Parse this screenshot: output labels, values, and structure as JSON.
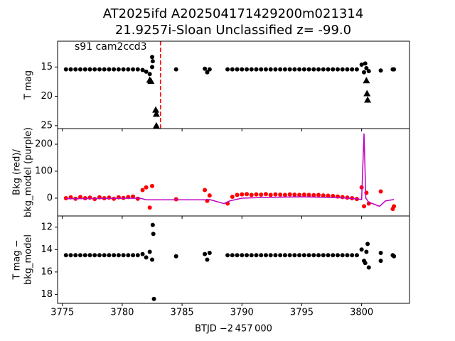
{
  "chart_data": [
    {
      "type": "scatter",
      "title": [
        "AT2025ifd  A202504171429200m021314",
        "21.9257i-Sloan Unclassified z= -99.0"
      ],
      "annotation": "s91 cam2ccd3",
      "ylabel": [
        "T mag"
      ],
      "xlim": [
        3774.6,
        3804.0
      ],
      "xticks": [
        3775,
        3780,
        3785,
        3790,
        3795,
        3800
      ],
      "ylim": [
        25.5,
        10.6
      ],
      "yticks": [
        15,
        20,
        25
      ],
      "vline": {
        "x": 3783.2,
        "color": "#ff0000"
      },
      "series": [
        {
          "color": "#000000",
          "marker": "o",
          "x": [
            3775.3,
            3775.7,
            3776.1,
            3776.5,
            3776.9,
            3777.3,
            3777.7,
            3778.1,
            3778.5,
            3778.9,
            3779.3,
            3779.7,
            3780.1,
            3780.5,
            3780.9,
            3781.3,
            3781.7,
            3782.0,
            3782.3,
            3782.5,
            3784.5,
            3786.9,
            3787.1,
            3787.3,
            3788.8,
            3789.2,
            3789.6,
            3790.0,
            3790.4,
            3790.8,
            3791.2,
            3791.6,
            3792.0,
            3792.4,
            3792.8,
            3793.2,
            3793.6,
            3794.0,
            3794.4,
            3794.8,
            3795.2,
            3795.6,
            3796.0,
            3796.4,
            3796.8,
            3797.2,
            3797.6,
            3798.0,
            3798.4,
            3798.8,
            3799.2,
            3799.6,
            3800.0,
            3800.2,
            3800.4,
            3800.6,
            3801.6,
            3802.6,
            3802.7
          ],
          "values": [
            15.4,
            15.4,
            15.4,
            15.4,
            15.4,
            15.4,
            15.4,
            15.4,
            15.4,
            15.4,
            15.4,
            15.4,
            15.4,
            15.4,
            15.4,
            15.4,
            15.5,
            15.8,
            16.2,
            15.0,
            15.4,
            15.3,
            15.9,
            15.4,
            15.4,
            15.4,
            15.4,
            15.4,
            15.4,
            15.4,
            15.4,
            15.4,
            15.4,
            15.4,
            15.4,
            15.4,
            15.4,
            15.4,
            15.4,
            15.4,
            15.4,
            15.4,
            15.4,
            15.4,
            15.4,
            15.4,
            15.4,
            15.4,
            15.4,
            15.4,
            15.4,
            15.4,
            14.6,
            15.9,
            15.2,
            15.7,
            15.6,
            15.4,
            15.4
          ]
        },
        {
          "color": "#000000",
          "marker": "o",
          "x": [
            3782.5,
            3782.55,
            3800.3
          ],
          "values": [
            13.3,
            14.0,
            14.4
          ]
        },
        {
          "color": "#000000",
          "marker": "^",
          "x": [
            3782.3,
            3782.4,
            3782.8,
            3782.85,
            3782.85,
            3800.4,
            3800.45,
            3800.5
          ],
          "values": [
            17.2,
            17.4,
            22.3,
            23.0,
            25.0,
            17.3,
            19.5,
            20.6
          ]
        }
      ]
    },
    {
      "type": "scatter",
      "ylabel": [
        "Bkg (red)/",
        "bkg_model (purple)"
      ],
      "xlim": [
        3774.6,
        3804.0
      ],
      "xticks": [
        3775,
        3780,
        3785,
        3790,
        3795,
        3800
      ],
      "ylim": [
        -66,
        258
      ],
      "yticks": [
        0,
        100,
        200
      ],
      "series": [
        {
          "color": "#ff0000",
          "marker": "o",
          "x": [
            3775.3,
            3775.7,
            3776.1,
            3776.5,
            3776.9,
            3777.3,
            3777.7,
            3778.1,
            3778.5,
            3778.9,
            3779.3,
            3779.7,
            3780.1,
            3780.5,
            3780.9,
            3781.3,
            3781.7,
            3782.0,
            3782.3,
            3782.5,
            3784.5,
            3786.9,
            3787.1,
            3787.3,
            3788.8,
            3789.2,
            3789.6,
            3790.0,
            3790.4,
            3790.8,
            3791.2,
            3791.6,
            3792.0,
            3792.4,
            3792.8,
            3793.2,
            3793.6,
            3794.0,
            3794.4,
            3794.8,
            3795.2,
            3795.6,
            3796.0,
            3796.4,
            3796.8,
            3797.2,
            3797.6,
            3798.0,
            3798.4,
            3798.8,
            3799.2,
            3799.6,
            3800.0,
            3800.2,
            3800.4,
            3800.6,
            3801.6,
            3802.6,
            3802.7
          ],
          "values": [
            0,
            3,
            -2,
            4,
            0,
            2,
            -3,
            3,
            0,
            2,
            -2,
            3,
            1,
            4,
            6,
            -2,
            30,
            40,
            -35,
            45,
            -4,
            30,
            -10,
            10,
            -20,
            5,
            12,
            14,
            15,
            12,
            14,
            13,
            15,
            12,
            14,
            13,
            12,
            14,
            13,
            12,
            13,
            12,
            11,
            12,
            10,
            9,
            8,
            6,
            4,
            2,
            0,
            -3,
            40,
            -30,
            20,
            -20,
            25,
            -40,
            -30
          ]
        },
        {
          "color": "#bf00bf",
          "marker": "line",
          "x": [
            3775.3,
            3781.5,
            3782.0,
            3782.5,
            3787.0,
            3787.3,
            3788.5,
            3789.0,
            3790.0,
            3792.0,
            3795.0,
            3798.0,
            3799.5,
            3800.0,
            3800.2,
            3800.35,
            3800.6,
            3801.5,
            3802.0,
            3802.7
          ],
          "values": [
            -2,
            0,
            -6,
            -6,
            -6,
            -5,
            -20,
            -10,
            0,
            3,
            5,
            2,
            -2,
            -5,
            240,
            0,
            -15,
            -30,
            -10,
            -5
          ]
        }
      ]
    },
    {
      "type": "scatter",
      "ylabel": [
        "T mag −",
        "bkg_model"
      ],
      "xlabel": "BTJD −2 457 000",
      "xlim": [
        3774.6,
        3804.0
      ],
      "xticks": [
        3775,
        3780,
        3785,
        3790,
        3795,
        3800
      ],
      "ylim": [
        18.8,
        11.0
      ],
      "yticks": [
        12,
        14,
        16,
        18
      ],
      "series": [
        {
          "color": "#000000",
          "marker": "o",
          "x": [
            3775.3,
            3775.7,
            3776.1,
            3776.5,
            3776.9,
            3777.3,
            3777.7,
            3778.1,
            3778.5,
            3778.9,
            3779.3,
            3779.7,
            3780.1,
            3780.5,
            3780.9,
            3781.3,
            3781.7,
            3782.0,
            3782.3,
            3782.5,
            3784.5,
            3786.9,
            3787.1,
            3787.3,
            3788.8,
            3789.2,
            3789.6,
            3790.0,
            3790.4,
            3790.8,
            3791.2,
            3791.6,
            3792.0,
            3792.4,
            3792.8,
            3793.2,
            3793.6,
            3794.0,
            3794.4,
            3794.8,
            3795.2,
            3795.6,
            3796.0,
            3796.4,
            3796.8,
            3797.2,
            3797.6,
            3798.0,
            3798.4,
            3798.8,
            3799.2,
            3799.6,
            3800.0,
            3800.2,
            3800.4,
            3800.6,
            3801.6,
            3802.6,
            3802.7
          ],
          "values": [
            14.5,
            14.5,
            14.5,
            14.5,
            14.5,
            14.5,
            14.5,
            14.5,
            14.5,
            14.5,
            14.5,
            14.5,
            14.5,
            14.5,
            14.5,
            14.5,
            14.4,
            14.7,
            14.2,
            14.9,
            14.6,
            14.4,
            14.9,
            14.3,
            14.5,
            14.5,
            14.5,
            14.5,
            14.5,
            14.5,
            14.5,
            14.5,
            14.5,
            14.5,
            14.5,
            14.5,
            14.5,
            14.5,
            14.5,
            14.5,
            14.5,
            14.5,
            14.5,
            14.5,
            14.5,
            14.5,
            14.5,
            14.5,
            14.5,
            14.5,
            14.5,
            14.5,
            14.0,
            15.0,
            14.2,
            15.6,
            14.3,
            14.5,
            14.6
          ]
        },
        {
          "color": "#000000",
          "marker": "o",
          "x": [
            3782.55,
            3782.6,
            3782.65,
            3800.3,
            3800.5,
            3801.6
          ],
          "values": [
            11.8,
            12.6,
            18.4,
            15.2,
            13.5,
            15.0
          ]
        }
      ]
    }
  ]
}
